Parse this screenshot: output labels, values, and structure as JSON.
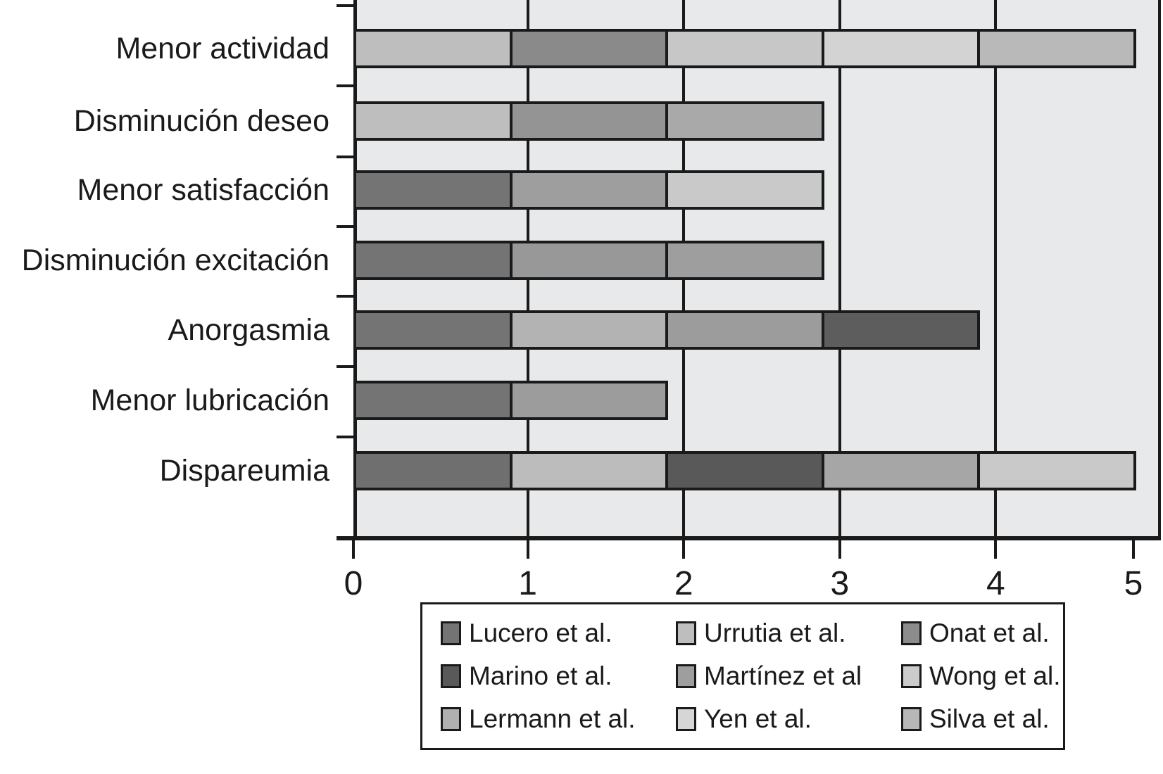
{
  "chart_data": {
    "type": "stacked-bar-horizontal",
    "title": "",
    "xlabel": "",
    "ylabel": "",
    "x_axis": {
      "min": 0,
      "max": 5,
      "tick_labels": [
        "0",
        "1",
        "2",
        "3",
        "4",
        "5"
      ]
    },
    "grid": "on",
    "categories": [
      "Menor actividad",
      "Disminución deseo",
      "Menor satisfacción",
      "Disminución excitación",
      "Anorgasmia",
      "Menor lubricación",
      "Dispareumia"
    ],
    "bars": [
      {
        "category": "Menor actividad",
        "total": 5,
        "segments": [
          {
            "study": "Urrutia et al.",
            "value": 1,
            "color": "#bebebe"
          },
          {
            "study": "Onat et al.",
            "value": 1,
            "color": "#8a8a8a"
          },
          {
            "study": "Wong et al.",
            "value": 1,
            "color": "#c7c7c7"
          },
          {
            "study": "Yen et al.",
            "value": 1,
            "color": "#d3d3d3"
          },
          {
            "study": "Silva et al.",
            "value": 1,
            "color": "#b9b9b9"
          }
        ]
      },
      {
        "category": "Disminución deseo",
        "total": 3,
        "segments": [
          {
            "study": "Urrutia et al.",
            "value": 1,
            "color": "#bebebe"
          },
          {
            "study": "Onat et al.",
            "value": 1,
            "color": "#949494"
          },
          {
            "study": "Lermann et al.",
            "value": 1,
            "color": "#a9a9a9"
          }
        ]
      },
      {
        "category": "Menor satisfacción",
        "total": 3,
        "segments": [
          {
            "study": "Lucero et al.",
            "value": 1,
            "color": "#747474"
          },
          {
            "study": "Martínez et al",
            "value": 1,
            "color": "#9e9e9e"
          },
          {
            "study": "Wong et al.",
            "value": 1,
            "color": "#c9c9c9"
          }
        ]
      },
      {
        "category": "Disminución excitación",
        "total": 3,
        "segments": [
          {
            "study": "Lucero et al.",
            "value": 1,
            "color": "#747474"
          },
          {
            "study": "Martínez et al",
            "value": 1,
            "color": "#989898"
          },
          {
            "study": "Silva et al.",
            "value": 1,
            "color": "#9e9e9e"
          }
        ]
      },
      {
        "category": "Anorgasmia",
        "total": 4,
        "segments": [
          {
            "study": "Lucero et al.",
            "value": 1,
            "color": "#747474"
          },
          {
            "study": "Lermann et al.",
            "value": 1,
            "color": "#b3b3b3"
          },
          {
            "study": "Martínez et al",
            "value": 1,
            "color": "#9c9c9c"
          },
          {
            "study": "Marino et al.",
            "value": 1,
            "color": "#5d5d5d"
          }
        ]
      },
      {
        "category": "Menor lubricación",
        "total": 2,
        "segments": [
          {
            "study": "Lucero et al.",
            "value": 1,
            "color": "#747474"
          },
          {
            "study": "Martínez et al",
            "value": 1,
            "color": "#9c9c9c"
          }
        ]
      },
      {
        "category": "Dispareumia",
        "total": 5,
        "segments": [
          {
            "study": "Lucero et al.",
            "value": 1,
            "color": "#6f6f6f"
          },
          {
            "study": "Urrutia et al.",
            "value": 1,
            "color": "#bcbcbc"
          },
          {
            "study": "Marino et al.",
            "value": 1,
            "color": "#595959"
          },
          {
            "study": "Silva et al.",
            "value": 1,
            "color": "#a6a6a6"
          },
          {
            "study": "Wong et al.",
            "value": 1,
            "color": "#c9c9c9"
          }
        ]
      }
    ],
    "legend": {
      "position": "bottom",
      "items": [
        {
          "label": "Lucero et al.",
          "color": "#747474"
        },
        {
          "label": "Urrutia et al.",
          "color": "#bebebe"
        },
        {
          "label": "Onat et al.",
          "color": "#8c8c8c"
        },
        {
          "label": "Marino et al.",
          "color": "#595959"
        },
        {
          "label": "Martínez et al",
          "color": "#9e9e9e"
        },
        {
          "label": "Wong et al.",
          "color": "#cbcbcb"
        },
        {
          "label": "Lermann et al.",
          "color": "#b0b0b0"
        },
        {
          "label": "Yen et al.",
          "color": "#d6d6d6"
        },
        {
          "label": "Silva et al.",
          "color": "#b7b7b7"
        }
      ]
    },
    "colors": {
      "plot_background": "#e8e9ea",
      "axis": "#1a1a1a",
      "page_background": "#ffffff"
    }
  }
}
